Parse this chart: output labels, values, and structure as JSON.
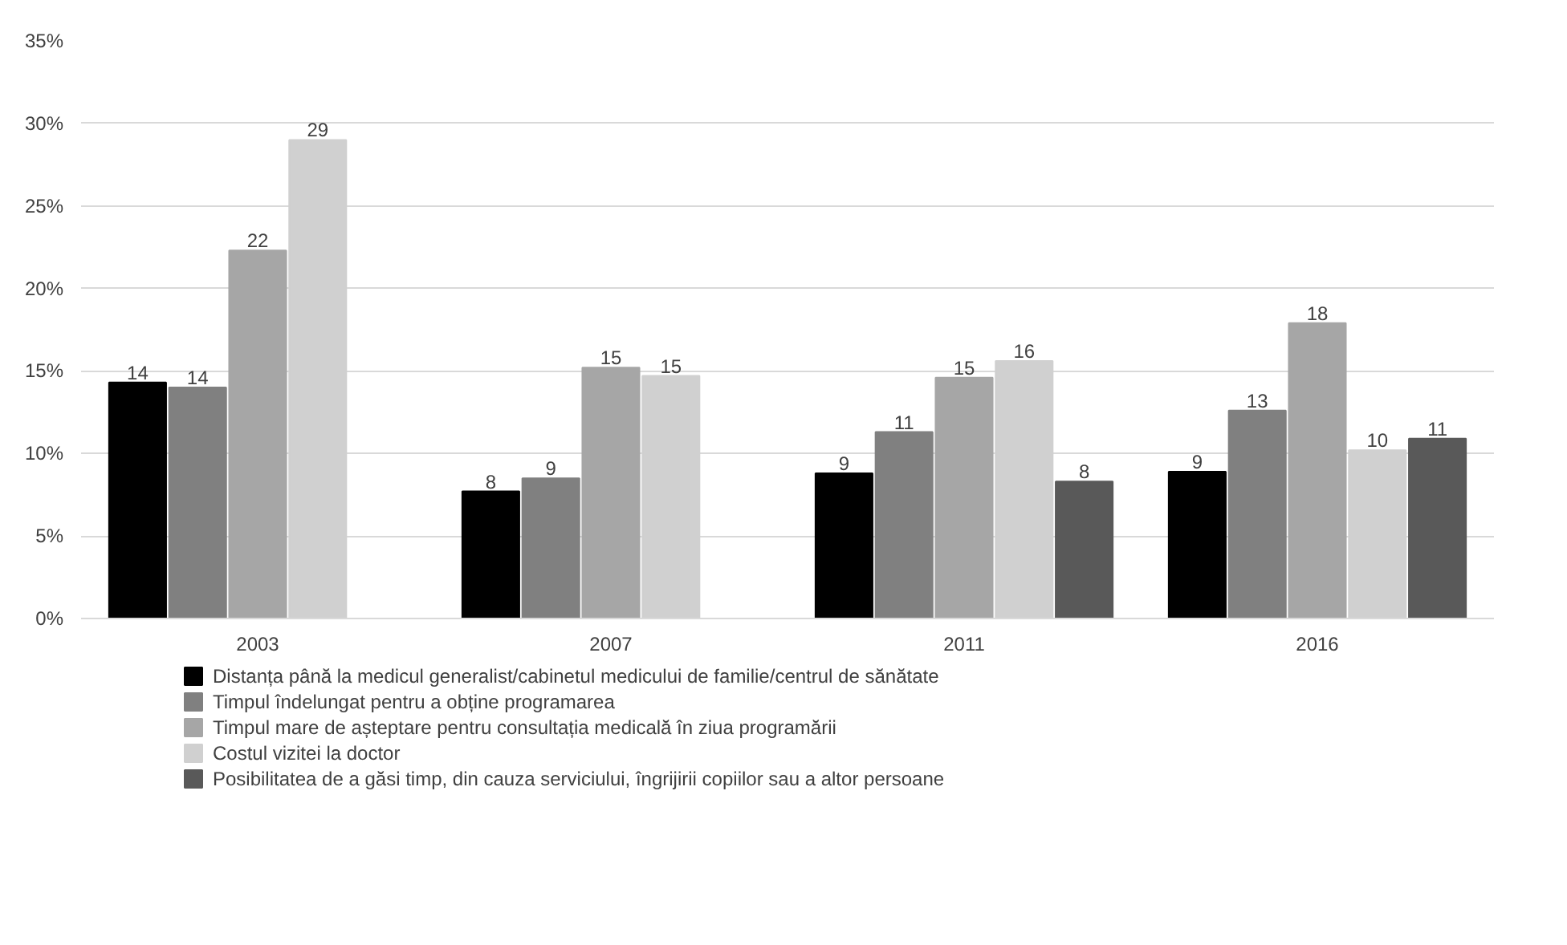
{
  "chart_data": {
    "type": "bar",
    "categories": [
      "2003",
      "2007",
      "2011",
      "2016"
    ],
    "series": [
      {
        "name": "Distanța până la medicul generalist/cabinetul medicului de familie/centrul de sănătate",
        "color": "#000000",
        "values": [
          14.3,
          7.7,
          8.8,
          8.9
        ],
        "value_labels": [
          "14",
          "8",
          "9",
          "9"
        ]
      },
      {
        "name": "Timpul îndelungat pentru a obține programarea",
        "color": "#808080",
        "values": [
          14.0,
          8.5,
          11.3,
          12.6
        ],
        "value_labels": [
          "14",
          "9",
          "11",
          "13"
        ]
      },
      {
        "name": "Timpul mare de așteptare pentru consultația medicală în ziua programării",
        "color": "#a6a6a6",
        "values": [
          22.3,
          15.2,
          14.6,
          17.9
        ],
        "value_labels": [
          "22",
          "15",
          "15",
          "18"
        ]
      },
      {
        "name": "Costul vizitei la doctor",
        "color": "#d0d0d0",
        "values": [
          29.0,
          14.7,
          15.6,
          10.2
        ],
        "value_labels": [
          "29",
          "15",
          "16",
          "10"
        ]
      },
      {
        "name": "Posibilitatea de a găsi timp, din cauza serviciului, îngrijirii copiilor sau a altor persoane",
        "color": "#595959",
        "values": [
          null,
          null,
          8.3,
          10.9
        ],
        "value_labels": [
          null,
          null,
          "8",
          "11"
        ]
      }
    ],
    "ylim": [
      0,
      35
    ],
    "yticks": [
      {
        "value": 0,
        "label": "0%"
      },
      {
        "value": 5,
        "label": "5%"
      },
      {
        "value": 10,
        "label": "10%"
      },
      {
        "value": 15,
        "label": "15%"
      },
      {
        "value": 20,
        "label": "20%"
      },
      {
        "value": 25,
        "label": "25%"
      },
      {
        "value": 30,
        "label": "30%"
      },
      {
        "value": 35,
        "label": "35%"
      }
    ],
    "grid": "y",
    "legend": "bottom"
  }
}
